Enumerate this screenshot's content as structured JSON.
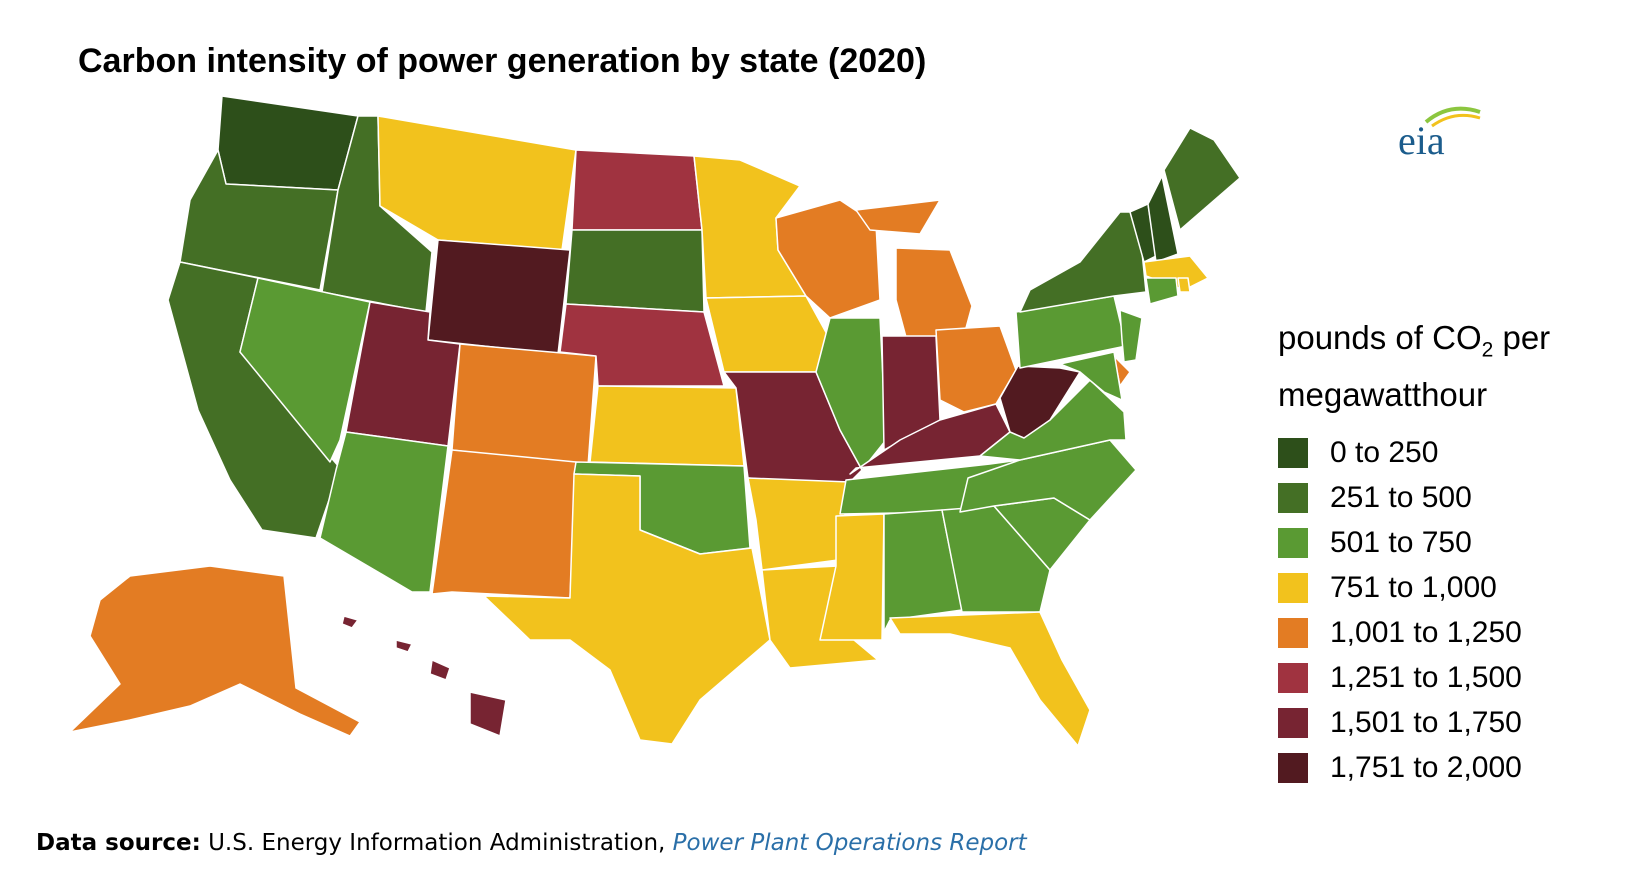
{
  "title": "Carbon intensity of power generation by state (2020)",
  "logo": {
    "text": "eia",
    "colors": [
      "#1b5c8c",
      "#8cc63f",
      "#f2c21d"
    ]
  },
  "legend": {
    "title_main": "pounds of CO",
    "title_sub": "2",
    "title_rest": " per",
    "title_line2": "megawatthour",
    "items": [
      {
        "label": "0 to 250",
        "color": "#2d4f1a"
      },
      {
        "label": "251 to 500",
        "color": "#446f25"
      },
      {
        "label": "501 to 750",
        "color": "#5a9a33"
      },
      {
        "label": "751 to 1,000",
        "color": "#f2c21d"
      },
      {
        "label": "1,001 to 1,250",
        "color": "#e37c23"
      },
      {
        "label": "1,251 to 1,500",
        "color": "#a03340"
      },
      {
        "label": "1,501 to 1,750",
        "color": "#772432"
      },
      {
        "label": "1,751 to 2,000",
        "color": "#521a20"
      }
    ]
  },
  "map_data": {
    "states": [
      {
        "id": "WA",
        "bin": 0
      },
      {
        "id": "OR",
        "bin": 1
      },
      {
        "id": "CA",
        "bin": 1
      },
      {
        "id": "ID",
        "bin": 1
      },
      {
        "id": "NV",
        "bin": 2
      },
      {
        "id": "MT",
        "bin": 3
      },
      {
        "id": "WY",
        "bin": 7
      },
      {
        "id": "UT",
        "bin": 6
      },
      {
        "id": "AZ",
        "bin": 2
      },
      {
        "id": "CO",
        "bin": 4
      },
      {
        "id": "NM",
        "bin": 4
      },
      {
        "id": "ND",
        "bin": 5
      },
      {
        "id": "SD",
        "bin": 1
      },
      {
        "id": "NE",
        "bin": 5
      },
      {
        "id": "KS",
        "bin": 3
      },
      {
        "id": "OK",
        "bin": 2
      },
      {
        "id": "TX",
        "bin": 3
      },
      {
        "id": "MN",
        "bin": 3
      },
      {
        "id": "IA",
        "bin": 3
      },
      {
        "id": "MO",
        "bin": 6
      },
      {
        "id": "AR",
        "bin": 3
      },
      {
        "id": "LA",
        "bin": 3
      },
      {
        "id": "WI",
        "bin": 4
      },
      {
        "id": "IL",
        "bin": 2
      },
      {
        "id": "MI",
        "bin": 4
      },
      {
        "id": "IN",
        "bin": 6
      },
      {
        "id": "OH",
        "bin": 4
      },
      {
        "id": "KY",
        "bin": 6
      },
      {
        "id": "TN",
        "bin": 2
      },
      {
        "id": "MS",
        "bin": 3
      },
      {
        "id": "AL",
        "bin": 2
      },
      {
        "id": "GA",
        "bin": 2
      },
      {
        "id": "FL",
        "bin": 3
      },
      {
        "id": "SC",
        "bin": 2
      },
      {
        "id": "NC",
        "bin": 2
      },
      {
        "id": "VA",
        "bin": 2
      },
      {
        "id": "WV",
        "bin": 7
      },
      {
        "id": "PA",
        "bin": 2
      },
      {
        "id": "NY",
        "bin": 1
      },
      {
        "id": "VT",
        "bin": 0
      },
      {
        "id": "NH",
        "bin": 0
      },
      {
        "id": "ME",
        "bin": 1
      },
      {
        "id": "MA",
        "bin": 3
      },
      {
        "id": "RI",
        "bin": 3
      },
      {
        "id": "CT",
        "bin": 2
      },
      {
        "id": "NJ",
        "bin": 2
      },
      {
        "id": "DE",
        "bin": 4
      },
      {
        "id": "MD",
        "bin": 2
      },
      {
        "id": "AK",
        "bin": 4
      },
      {
        "id": "HI",
        "bin": 6
      }
    ]
  },
  "source": {
    "label": "Data source:",
    "text": " U.S. Energy Information Administration, ",
    "link": "Power Plant Operations Report"
  }
}
